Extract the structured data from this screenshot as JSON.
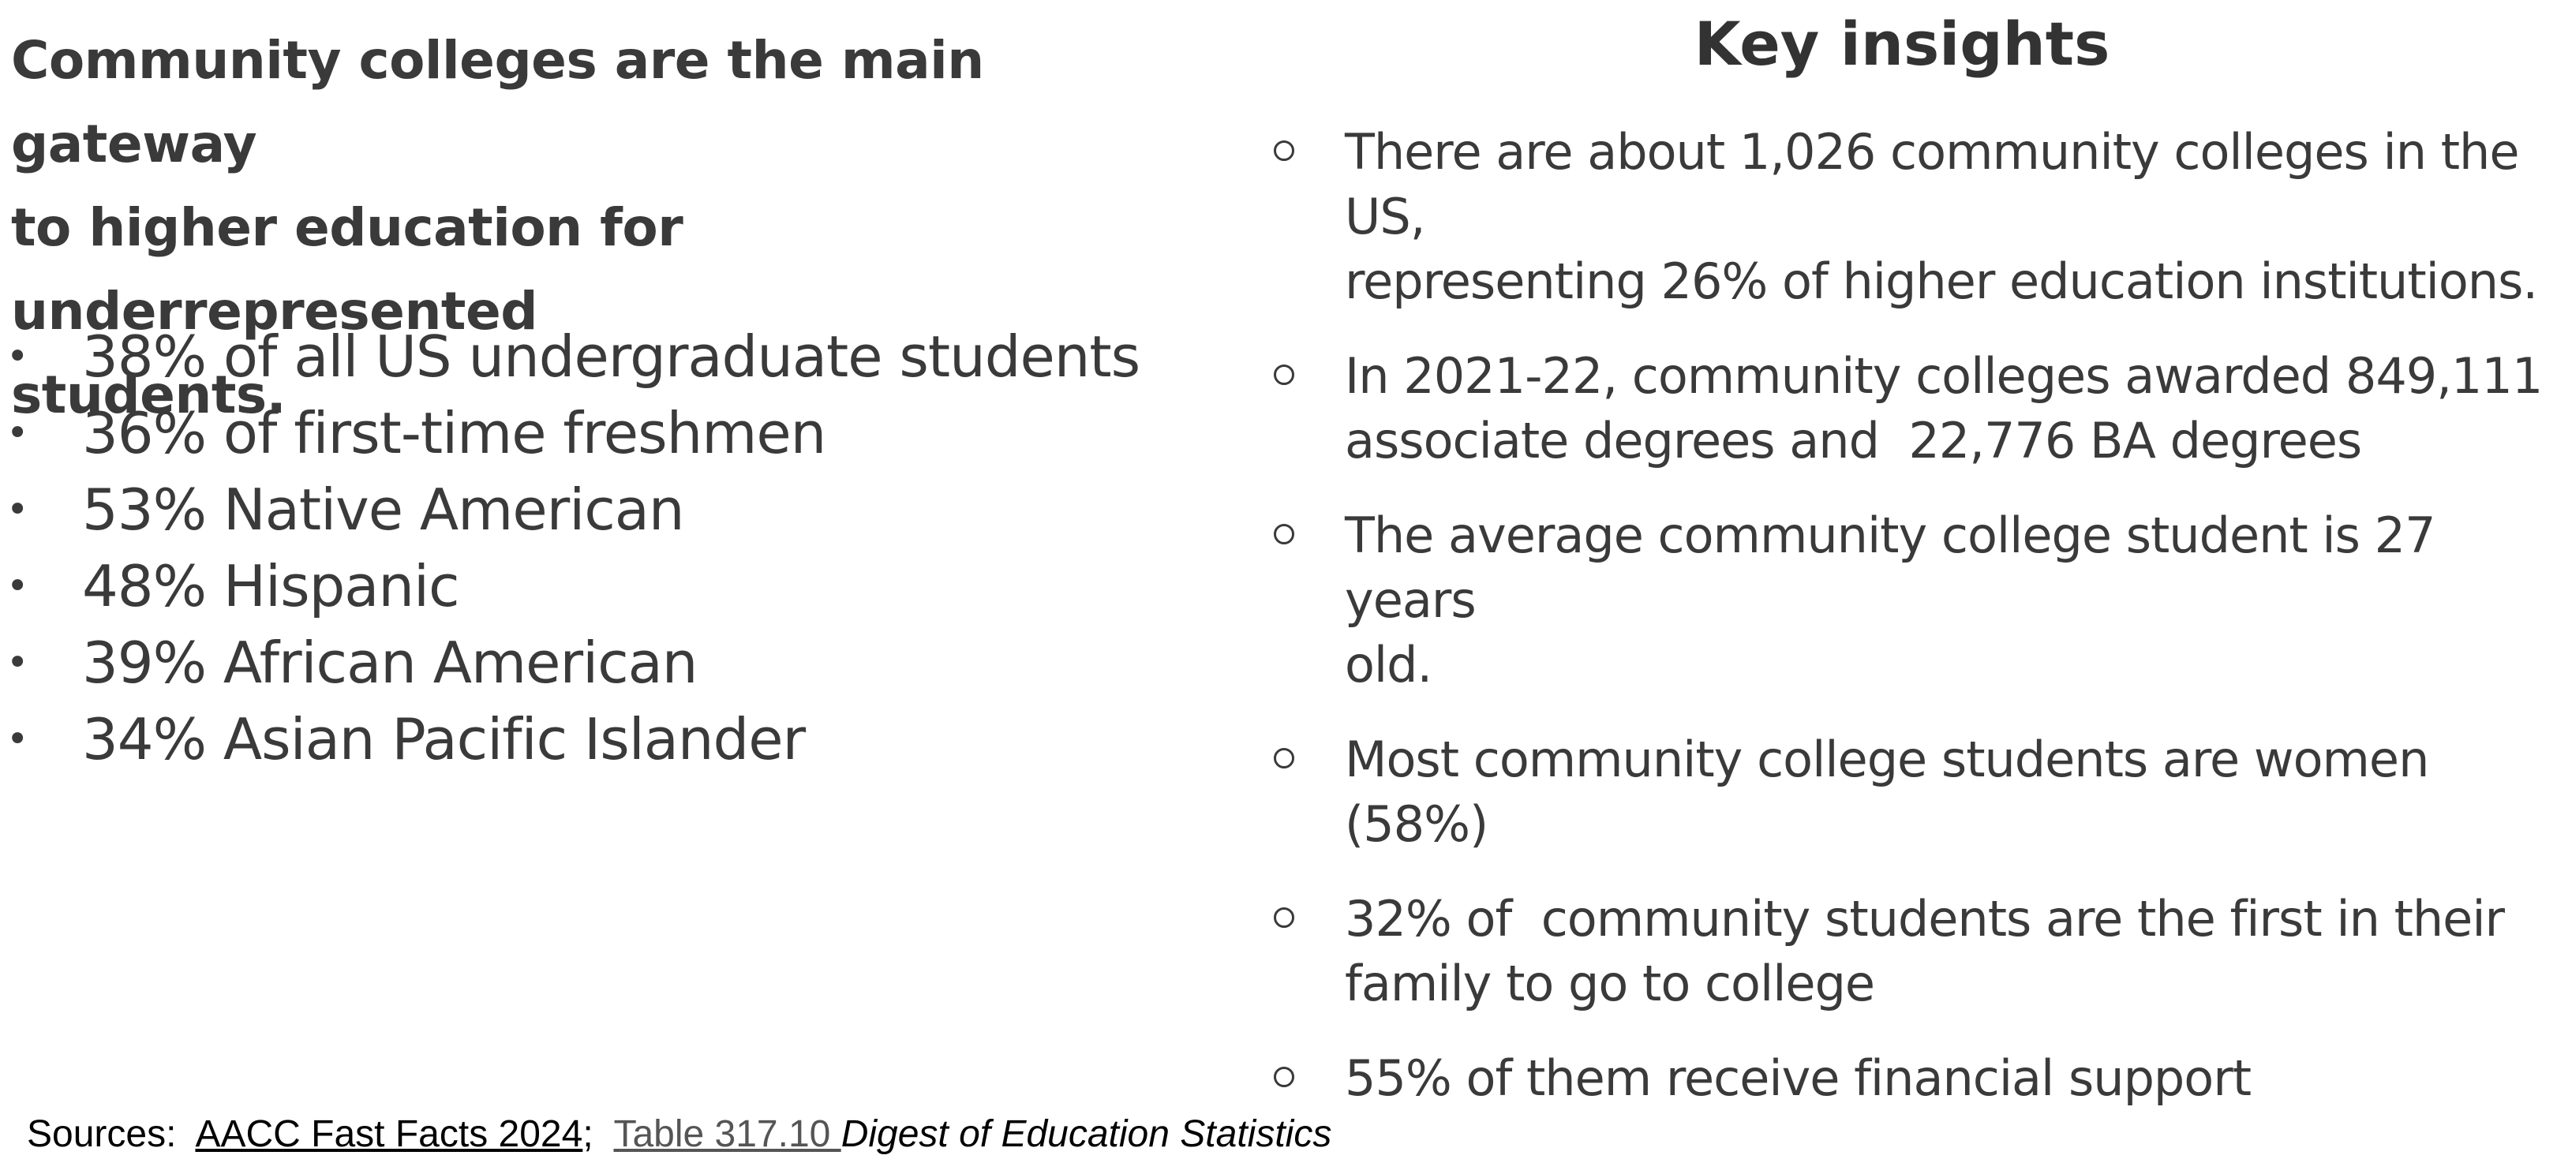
{
  "left": {
    "headline_lines": [
      "Community colleges are the main gateway",
      "to higher education for underrepresented",
      "students."
    ],
    "stats": [
      "38% of all US undergraduate students",
      "36% of first-time freshmen",
      "53% Native American",
      "48% Hispanic",
      "39% African American",
      "34% Asian Pacific Islander"
    ],
    "bullet_glyph": "•"
  },
  "right": {
    "title": "Key insights",
    "insights": [
      {
        "lines": [
          "There are about 1,026 community colleges in the US,",
          "representing 26% of higher education institutions."
        ]
      },
      {
        "lines": [
          "In 2021-22, community colleges awarded 849,111",
          "associate degrees and  22,776 BA degrees"
        ]
      },
      {
        "lines": [
          "The average community college student is 27 years",
          "old."
        ]
      },
      {
        "lines": [
          "Most community college students are women (58%)"
        ]
      },
      {
        "lines": [
          "32% of  community students are the first in their",
          "family to go to college"
        ]
      },
      {
        "lines": [
          "55% of them receive financial support"
        ]
      }
    ]
  },
  "sources": {
    "prefix": "Sources:  ",
    "link1": "AACC Fast Facts 2024",
    "separator": ";  ",
    "link2": "Table 317.10 ",
    "italic_text": "Digest of Education Statistics"
  }
}
